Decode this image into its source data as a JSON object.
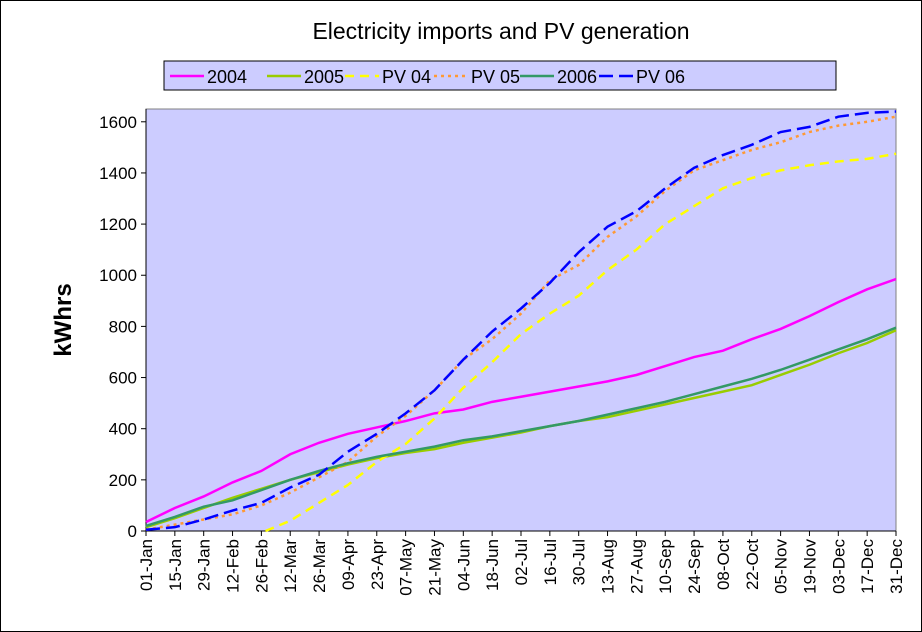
{
  "chart_data": {
    "type": "line",
    "title": "Electricity imports and PV generation",
    "xlabel": "",
    "ylabel": "kWhrs",
    "ylim": [
      0,
      1650
    ],
    "yticks": [
      0,
      200,
      400,
      600,
      800,
      1000,
      1200,
      1400,
      1600
    ],
    "grid": false,
    "legend_position": "top",
    "plot_background": "#ccccff",
    "categories": [
      "01-Jan",
      "15-Jan",
      "29-Jan",
      "12-Feb",
      "26-Feb",
      "12-Mar",
      "26-Mar",
      "09-Apr",
      "23-Apr",
      "07-May",
      "21-May",
      "04-Jun",
      "18-Jun",
      "02-Jul",
      "16-Jul",
      "30-Jul",
      "13-Aug",
      "27-Aug",
      "10-Sep",
      "24-Sep",
      "08-Oct",
      "22-Oct",
      "05-Nov",
      "19-Nov",
      "03-Dec",
      "17-Dec",
      "31-Dec"
    ],
    "series": [
      {
        "name": "2004",
        "color": "#ff00ff",
        "dash": "solid",
        "values": [
          35,
          90,
          135,
          190,
          235,
          300,
          345,
          380,
          405,
          430,
          460,
          475,
          505,
          525,
          545,
          565,
          585,
          610,
          645,
          680,
          705,
          750,
          790,
          840,
          895,
          945,
          985
        ]
      },
      {
        "name": "2005",
        "color": "#99cc00",
        "dash": "solid",
        "values": [
          15,
          50,
          90,
          130,
          165,
          200,
          230,
          260,
          285,
          305,
          320,
          345,
          365,
          385,
          410,
          430,
          445,
          470,
          495,
          520,
          545,
          570,
          610,
          650,
          695,
          735,
          785
        ]
      },
      {
        "name": "PV 04",
        "color": "#ffff00",
        "dash": "dash",
        "values": [
          null,
          null,
          null,
          null,
          null,
          40,
          110,
          180,
          270,
          340,
          440,
          560,
          660,
          770,
          850,
          920,
          1020,
          1100,
          1200,
          1270,
          1340,
          1380,
          1410,
          1430,
          1445,
          1455,
          1475
        ]
      },
      {
        "name": "PV 05",
        "color": "#ff9933",
        "dash": "dot",
        "values": [
          5,
          25,
          45,
          65,
          100,
          150,
          210,
          270,
          370,
          450,
          550,
          670,
          750,
          850,
          980,
          1040,
          1150,
          1230,
          1330,
          1410,
          1450,
          1490,
          1520,
          1560,
          1585,
          1600,
          1620
        ]
      },
      {
        "name": "2006",
        "color": "#339966",
        "dash": "solid",
        "values": [
          20,
          55,
          95,
          120,
          160,
          200,
          235,
          265,
          290,
          310,
          330,
          355,
          370,
          390,
          410,
          430,
          455,
          480,
          505,
          535,
          565,
          595,
          630,
          670,
          710,
          750,
          795
        ]
      },
      {
        "name": "PV 06",
        "color": "#0000ff",
        "dash": "longdash",
        "values": [
          5,
          15,
          45,
          80,
          110,
          170,
          220,
          310,
          380,
          460,
          550,
          670,
          780,
          870,
          970,
          1090,
          1190,
          1250,
          1340,
          1420,
          1470,
          1510,
          1560,
          1580,
          1620,
          1635,
          1640
        ]
      }
    ]
  }
}
